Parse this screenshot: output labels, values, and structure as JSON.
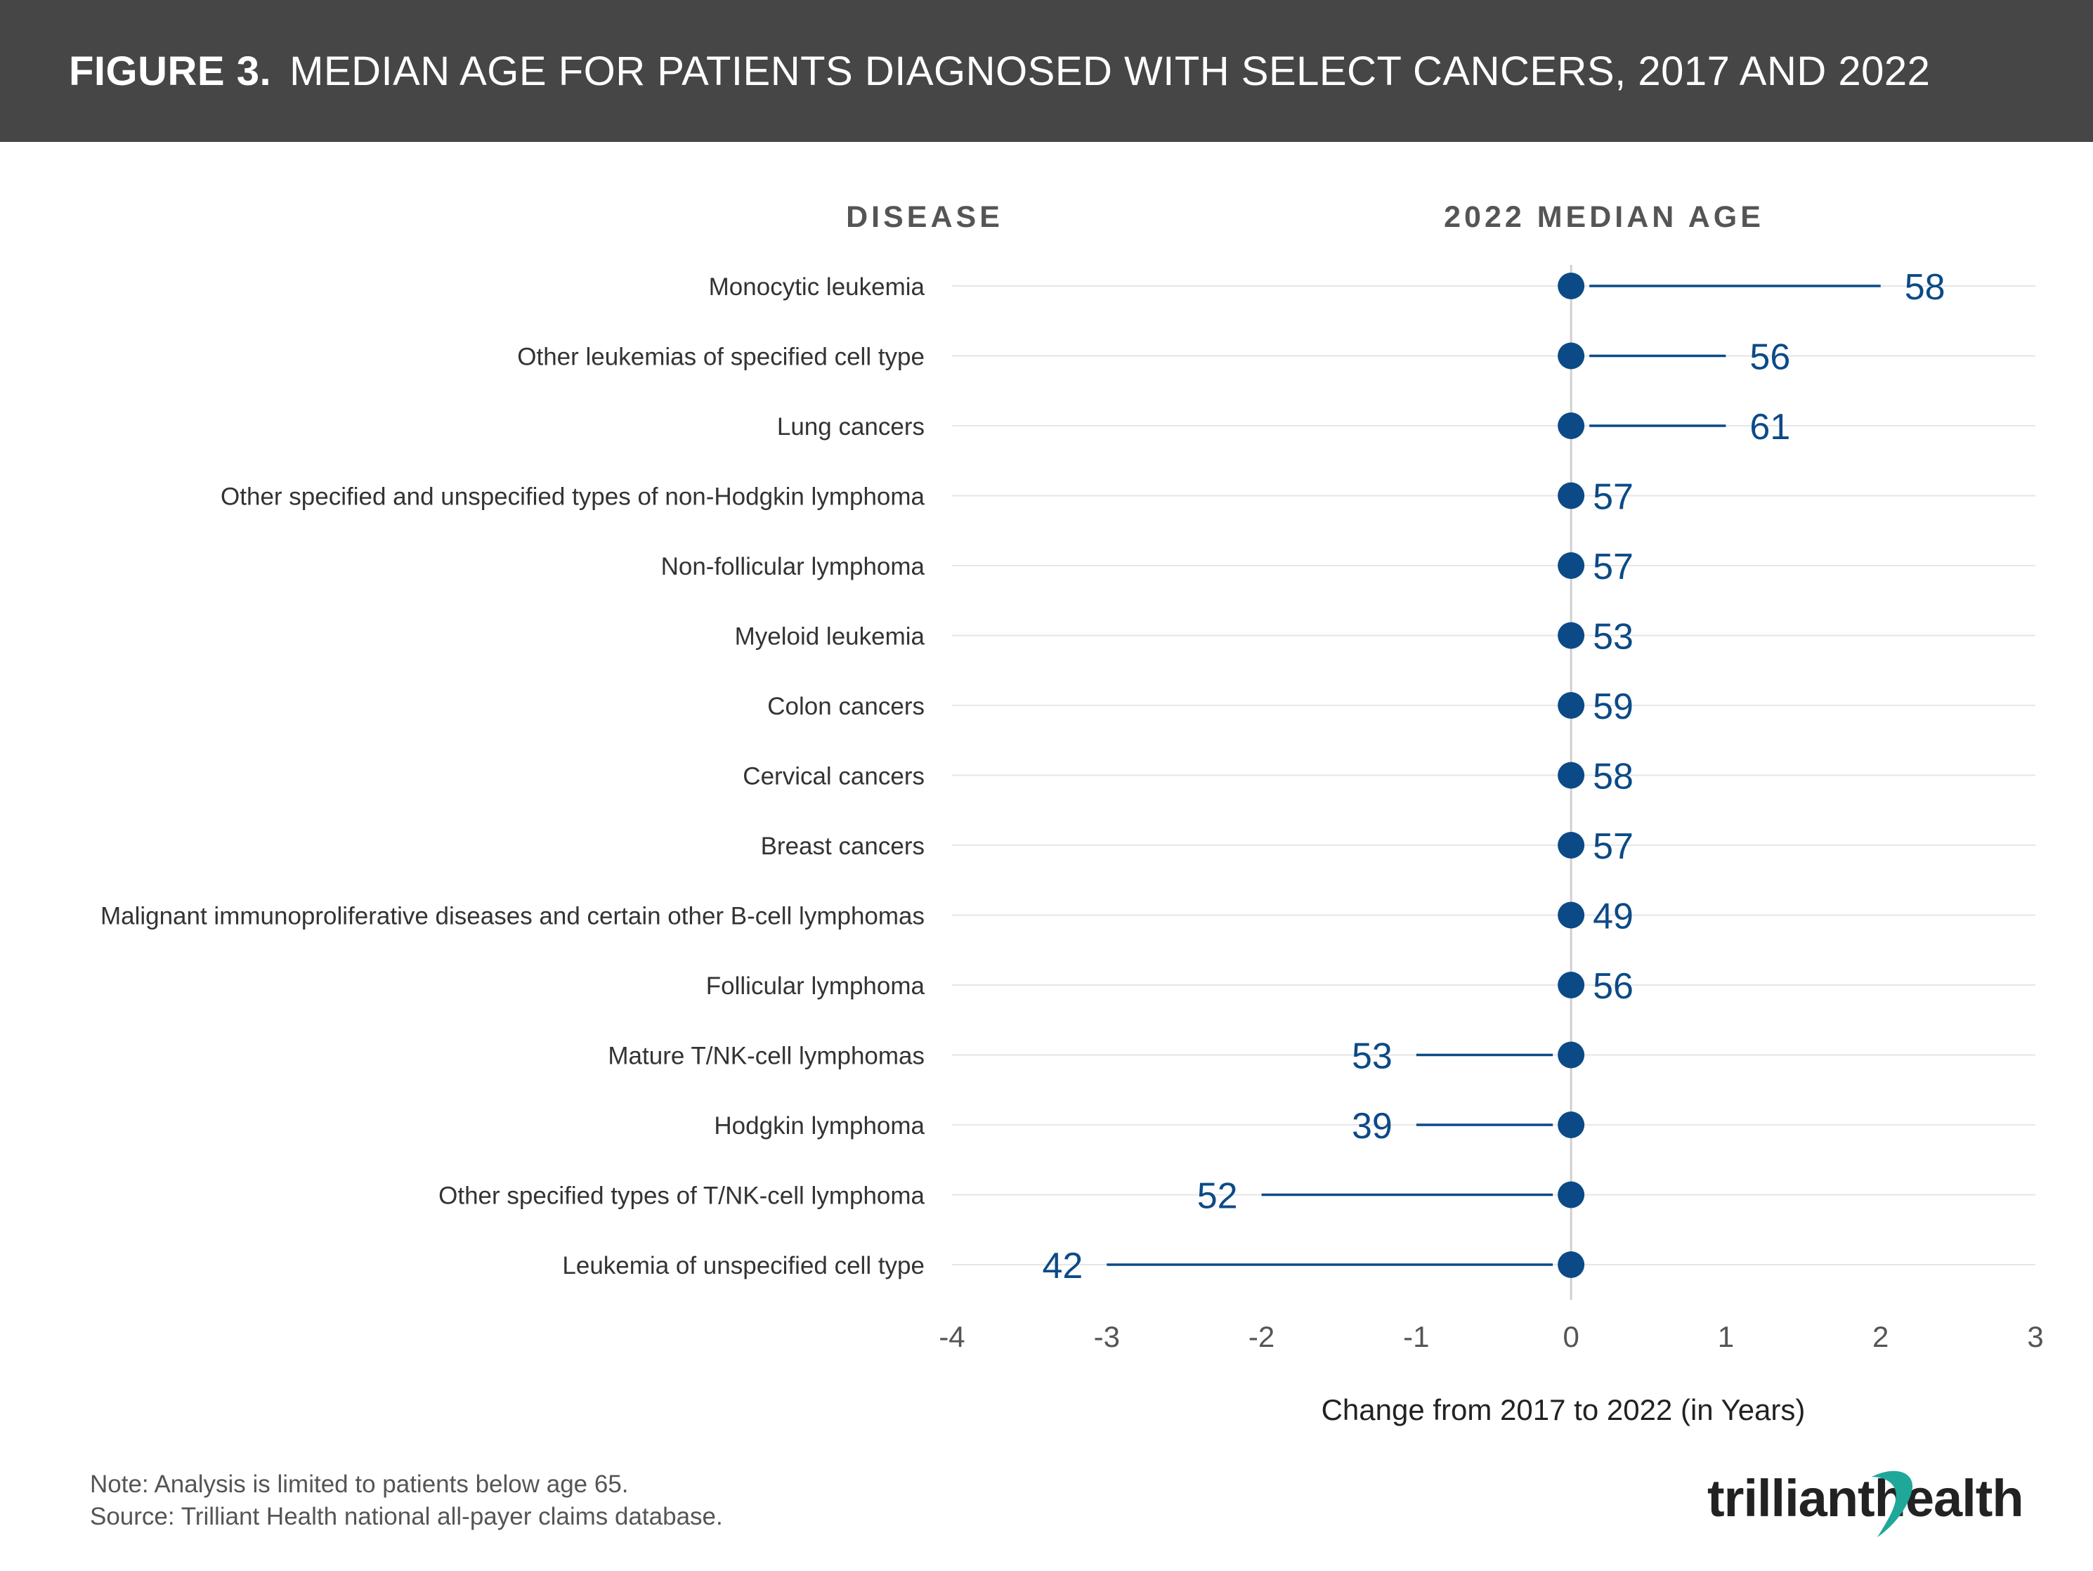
{
  "header": {
    "figure_label": "FIGURE 3.",
    "title": "MEDIAN AGE FOR PATIENTS DIAGNOSED WITH SELECT CANCERS, 2017 AND 2022"
  },
  "columns": {
    "disease": "DISEASE",
    "median_age": "2022 MEDIAN AGE"
  },
  "chart_data": {
    "type": "lollipop",
    "title": "MEDIAN AGE FOR PATIENTS DIAGNOSED WITH SELECT CANCERS, 2017 AND 2022",
    "xlabel": "Change from 2017 to 2022 (in Years)",
    "ylabel": "DISEASE",
    "xlim": [
      -4,
      3
    ],
    "xticks": [
      -4,
      -3,
      -2,
      -1,
      0,
      1,
      2,
      3
    ],
    "grid": true,
    "categories": [
      "Monocytic leukemia",
      "Other leukemias of specified cell type",
      "Lung cancers",
      "Other specified and unspecified types of non-Hodgkin lymphoma",
      "Non-follicular lymphoma",
      "Myeloid leukemia",
      "Colon cancers",
      "Cervical cancers",
      "Breast cancers",
      "Malignant immunoproliferative diseases and certain other B-cell lymphomas",
      "Follicular lymphoma",
      "Mature T/NK-cell lymphomas",
      "Hodgkin lymphoma",
      "Other specified types of T/NK-cell lymphoma",
      "Leukemia of unspecified cell type"
    ],
    "series": [
      {
        "name": "Change from 2017 to 2022 (in Years)",
        "values": [
          2,
          1,
          1,
          0,
          0,
          0,
          0,
          0,
          0,
          0,
          0,
          -1,
          -1,
          -2,
          -3
        ]
      },
      {
        "name": "2022 Median Age",
        "values": [
          58,
          56,
          61,
          57,
          57,
          53,
          59,
          58,
          57,
          49,
          56,
          53,
          39,
          52,
          42
        ]
      }
    ]
  },
  "footer": {
    "note": "Note: Analysis is limited to patients below age 65.",
    "source": "Source: Trilliant Health national all-payer claims database.",
    "logo_left": "trilliant",
    "logo_right": "health"
  },
  "colors": {
    "header_bg": "#464646",
    "marker": "#0b4a87",
    "label": "#0b4a87",
    "grid": "#e6e6e6",
    "zero_line": "#cfcfcf"
  }
}
